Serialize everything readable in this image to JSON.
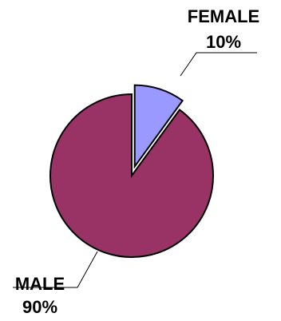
{
  "chart_data": {
    "type": "pie",
    "title": "",
    "slices": [
      {
        "label": "MALE",
        "value": 90,
        "value_label": "90%",
        "color": "#993366"
      },
      {
        "label": "FEMALE",
        "value": 10,
        "value_label": "10%",
        "color": "#9999FF",
        "exploded": true
      }
    ],
    "outline_color": "#000000",
    "legend": "none"
  }
}
